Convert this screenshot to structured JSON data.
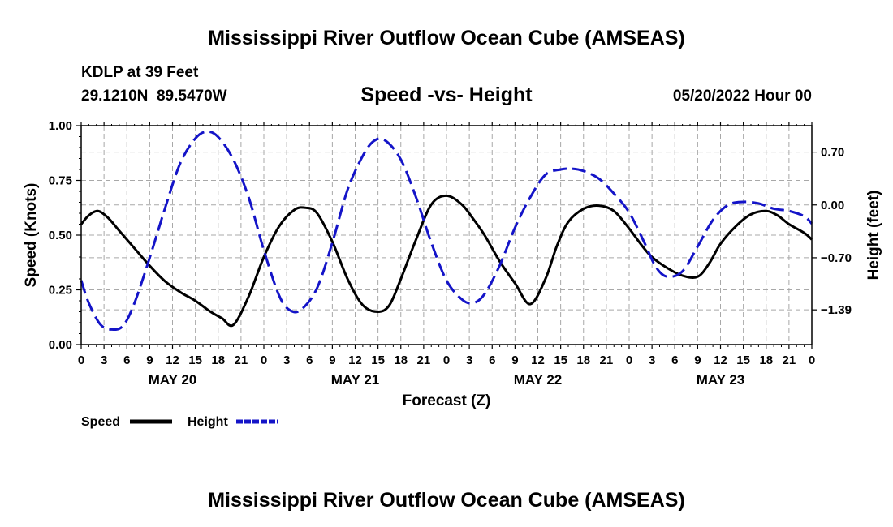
{
  "chart_data": {
    "type": "line",
    "title": "Mississippi River Outflow Ocean Cube (AMSEAS)",
    "footer_title": "Mississippi River Outflow Ocean Cube (AMSEAS)",
    "station": "KDLP at 39 Feet",
    "coords": "29.1210N  89.5470W",
    "subtitle": "Speed -vs- Height",
    "run_time": "05/20/2022 Hour 00",
    "xlabel": "Forecast (Z)",
    "ylabel_left": "Speed (Knots)",
    "ylabel_right": "Height (feet)",
    "xlim": [
      0,
      96
    ],
    "ylim_left": [
      0,
      1
    ],
    "ylim_right": [
      -1.85,
      1.05
    ],
    "grid": true,
    "x_tick_labels": [
      "0",
      "3",
      "6",
      "9",
      "12",
      "15",
      "18",
      "21",
      "0",
      "3",
      "6",
      "9",
      "12",
      "15",
      "18",
      "21",
      "0",
      "3",
      "6",
      "9",
      "12",
      "15",
      "18",
      "21",
      "0",
      "3",
      "6",
      "9",
      "12",
      "15",
      "18",
      "21",
      "0"
    ],
    "date_labels": [
      {
        "hour": 12,
        "label": "MAY 20"
      },
      {
        "hour": 36,
        "label": "MAY 21"
      },
      {
        "hour": 60,
        "label": "MAY 22"
      },
      {
        "hour": 84,
        "label": "MAY 23"
      }
    ],
    "y_left_ticks": [
      {
        "value": 0,
        "label": "0.00"
      },
      {
        "value": 0.25,
        "label": "0.25"
      },
      {
        "value": 0.5,
        "label": "0.50"
      },
      {
        "value": 0.75,
        "label": "0.75"
      },
      {
        "value": 1.0,
        "label": "1.00"
      }
    ],
    "y_right_ticks": [
      {
        "value": 0.7,
        "label": "0.70"
      },
      {
        "value": 0.0,
        "label": "0.00"
      },
      {
        "value": -0.7,
        "label": "−0.70"
      },
      {
        "value": -1.39,
        "label": "−1.39"
      }
    ],
    "series": [
      {
        "name": "Speed",
        "legend_label": "Speed",
        "axis": "left",
        "color": "#000000",
        "dash": "solid",
        "x": [
          0,
          1,
          2.2,
          3.5,
          5,
          7,
          9,
          11,
          13,
          15,
          17,
          18.5,
          20,
          22,
          24,
          26,
          28,
          29.5,
          31,
          33,
          35,
          37,
          39,
          40.5,
          42,
          44,
          46,
          48,
          50,
          51.5,
          53,
          55,
          57,
          59,
          61,
          62.5,
          64,
          66,
          68,
          70,
          72,
          73.5,
          75,
          77,
          79,
          81,
          82.5,
          84,
          86,
          88,
          90,
          91.5,
          93,
          95,
          96
        ],
        "values": [
          0.55,
          0.59,
          0.61,
          0.58,
          0.52,
          0.44,
          0.36,
          0.29,
          0.24,
          0.2,
          0.15,
          0.12,
          0.09,
          0.22,
          0.4,
          0.54,
          0.615,
          0.625,
          0.6,
          0.47,
          0.3,
          0.18,
          0.15,
          0.18,
          0.3,
          0.48,
          0.64,
          0.68,
          0.64,
          0.575,
          0.5,
          0.38,
          0.28,
          0.185,
          0.3,
          0.45,
          0.56,
          0.62,
          0.635,
          0.61,
          0.53,
          0.46,
          0.4,
          0.35,
          0.315,
          0.31,
          0.37,
          0.46,
          0.54,
          0.595,
          0.61,
          0.59,
          0.55,
          0.51,
          0.48
        ]
      },
      {
        "name": "Height",
        "legend_label": "Height",
        "axis": "right",
        "color": "#1414c8",
        "dash": "dashed",
        "x": [
          0,
          1,
          2.5,
          4,
          5.5,
          7,
          9,
          11,
          13,
          15,
          16.5,
          18,
          20,
          22,
          24,
          26,
          27.5,
          29,
          31,
          33,
          35,
          37,
          38.5,
          40,
          42,
          44,
          46,
          48,
          50,
          51.5,
          53,
          55,
          57,
          59,
          61,
          63,
          64.5,
          66,
          68,
          70,
          72,
          74,
          75.5,
          77,
          79,
          81,
          83,
          85,
          87,
          89,
          91,
          93,
          95,
          96
        ],
        "values": [
          -1.0,
          -1.3,
          -1.58,
          -1.65,
          -1.6,
          -1.3,
          -0.7,
          -0.05,
          0.55,
          0.88,
          0.97,
          0.9,
          0.6,
          0.1,
          -0.6,
          -1.2,
          -1.4,
          -1.38,
          -1.1,
          -0.5,
          0.2,
          0.65,
          0.85,
          0.85,
          0.6,
          0.1,
          -0.5,
          -1.0,
          -1.25,
          -1.3,
          -1.18,
          -0.8,
          -0.3,
          0.1,
          0.4,
          0.47,
          0.48,
          0.45,
          0.35,
          0.15,
          -0.1,
          -0.5,
          -0.82,
          -0.95,
          -0.88,
          -0.55,
          -0.2,
          0.0,
          0.04,
          0.02,
          -0.05,
          -0.08,
          -0.15,
          -0.25
        ]
      }
    ]
  }
}
